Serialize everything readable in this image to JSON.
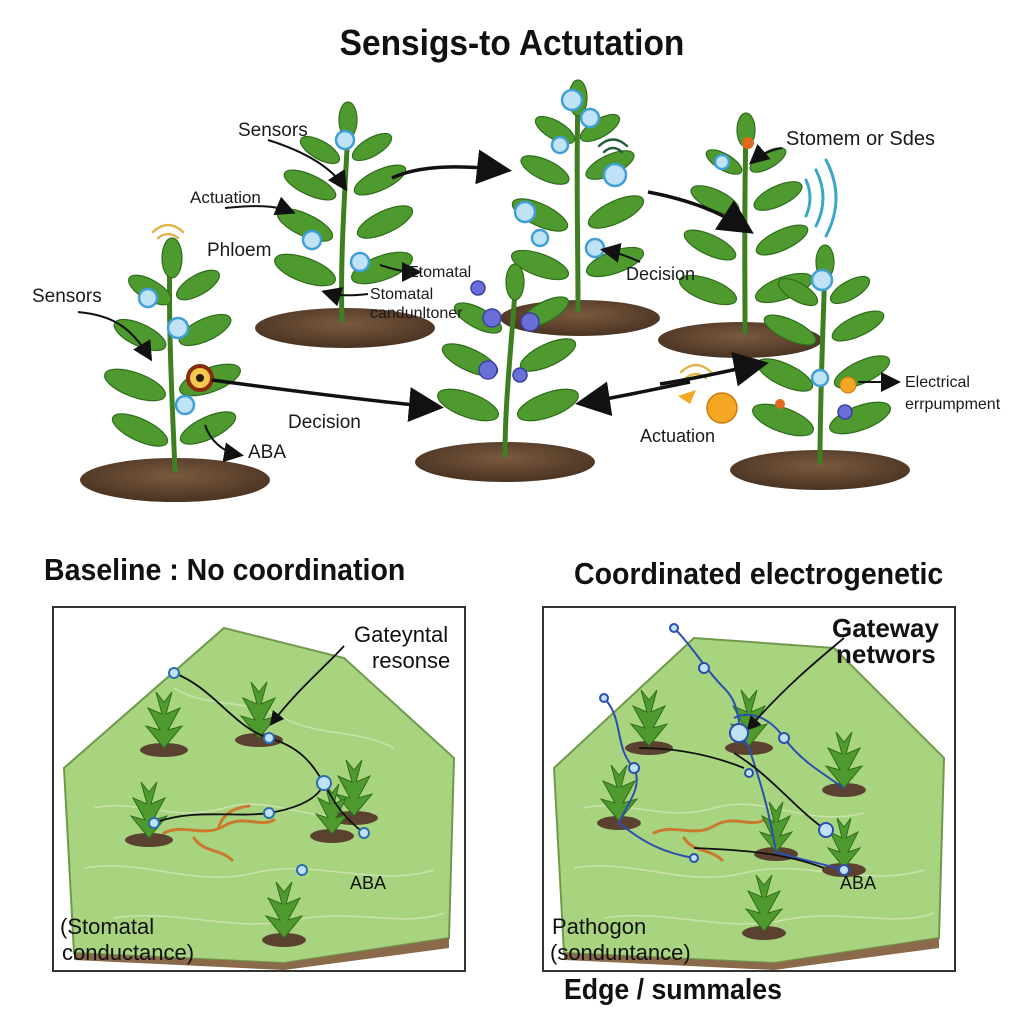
{
  "title": "Sensigs-to Actutation",
  "top_labels": {
    "sensors_1": "Sensors",
    "actuation_1": "Actuation",
    "phloem": "Phloem",
    "sensors_2": "Sensors",
    "decision_1": "Decision",
    "aba_1": "ABA",
    "etomatal": "Etomatal",
    "stomatal_cond_1": "Stomatal",
    "stomatal_cond_2": "candunltoner",
    "decision_2": "Decision",
    "stomem": "Stomem or Sdes",
    "actuation_2": "Actuation",
    "electrical_1": "Electrical",
    "electrical_2": "errpumpment"
  },
  "baseline": {
    "heading": "Baseline : No coordination",
    "gateway_1": "Gateyntal",
    "gateway_2": "resonse",
    "aba": "ABA",
    "stomatal_1": "(Stomatal",
    "stomatal_2": "conductance)"
  },
  "coordinated": {
    "heading": "Coordinated electrogenetic",
    "gateway_1": "Gateway",
    "gateway_2": "networs",
    "aba": "ABA",
    "pathogon_1": "Pathogon",
    "pathogon_2": "(sonduntance)"
  },
  "footer": "Edge / summales",
  "colors": {
    "leaf": "#4e9a2e",
    "leaf_dark": "#2f6d1c",
    "soil": "#5b4230",
    "terrain": "#a9d47f",
    "sensor": "#3f9fd6",
    "network": "#2a4fb0"
  }
}
